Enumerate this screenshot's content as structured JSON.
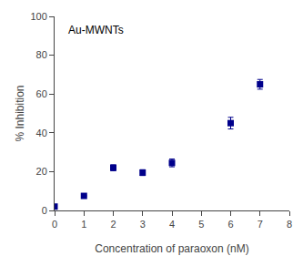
{
  "chart_data": {
    "type": "scatter",
    "x": [
      0,
      1,
      2,
      3,
      4,
      6,
      7
    ],
    "values": [
      2.0,
      7.5,
      22.0,
      19.5,
      24.5,
      45.0,
      65.0
    ],
    "yerr": [
      0.5,
      0.3,
      1.5,
      1.5,
      2.0,
      3.0,
      2.5
    ],
    "color": "#00008B",
    "marker": "square",
    "line_style": "none",
    "xlabel": "Concentration of paraoxon (nM)",
    "ylabel": "% Inhibition",
    "annotation": "Au-MWNTs",
    "xlim": [
      0,
      8
    ],
    "ylim": [
      0,
      100
    ],
    "xticks": [
      0,
      1,
      2,
      3,
      4,
      5,
      6,
      7,
      8
    ],
    "yticks": [
      0,
      20,
      40,
      60,
      80,
      100
    ],
    "grid": false
  }
}
